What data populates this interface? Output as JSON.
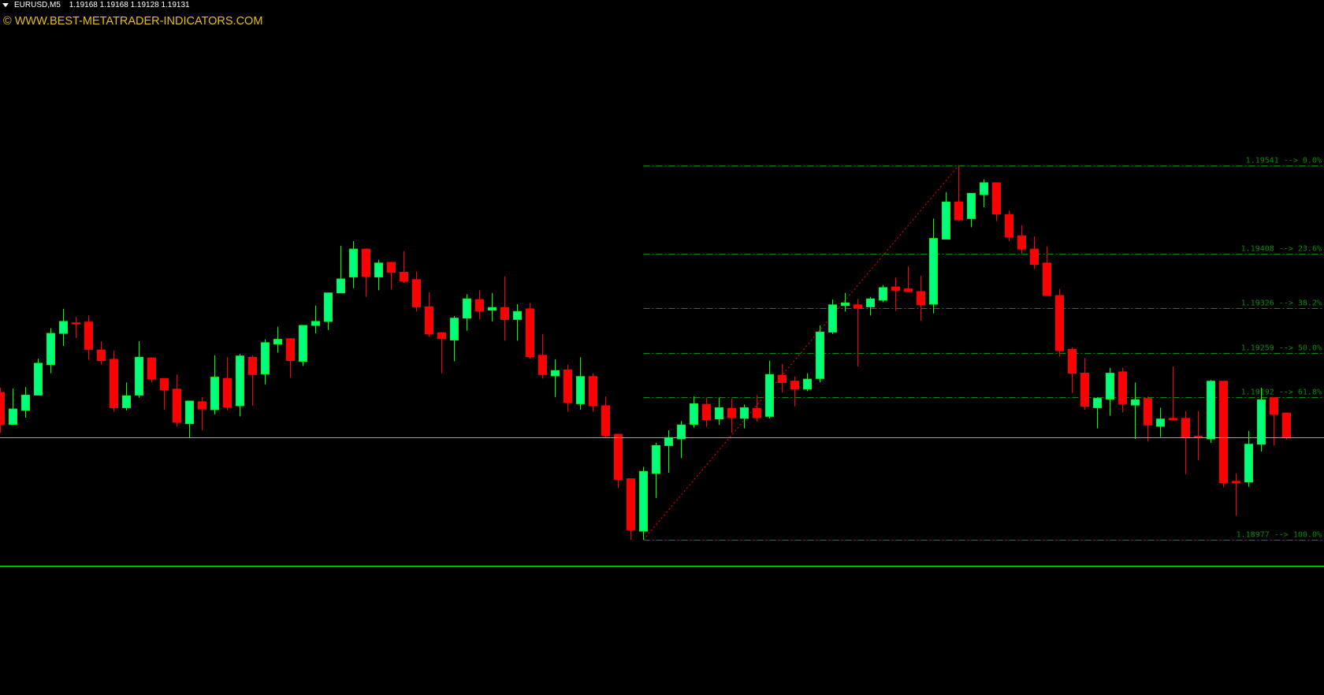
{
  "header": {
    "symbol": "EURUSD,M5",
    "ohlc": "1.19168 1.19168 1.19128 1.19131",
    "menu_icon": "triangle-down-icon"
  },
  "watermark": "© WWW.BEST-METATRADER-INDICATORS.COM",
  "colors": {
    "background": "#000000",
    "bull_body": "#00ff7f",
    "bull_wick": "#00ff00",
    "bear": "#ff0000",
    "fib": "#0a8a0a",
    "fib_trendline": "#ff0000",
    "bid_line": "#a0a0a8",
    "separator": "#00ff00"
  },
  "chart_data": {
    "type": "candlestick",
    "symbol": "EURUSD",
    "timeframe": "M5",
    "current_price": 1.19131,
    "candles": [
      [
        1.19199,
        1.19206,
        1.19138,
        1.19151
      ],
      [
        1.19151,
        1.19205,
        1.1915,
        1.19174
      ],
      [
        1.19172,
        1.19207,
        1.19161,
        1.19195
      ],
      [
        1.19195,
        1.1925,
        1.19195,
        1.19243
      ],
      [
        1.19241,
        1.19296,
        1.19228,
        1.19288
      ],
      [
        1.19288,
        1.19325,
        1.19269,
        1.19306
      ],
      [
        1.19304,
        1.19313,
        1.19281,
        1.19303
      ],
      [
        1.19305,
        1.19315,
        1.19248,
        1.19264
      ],
      [
        1.19263,
        1.19276,
        1.19241,
        1.19247
      ],
      [
        1.19249,
        1.19262,
        1.1917,
        1.19176
      ],
      [
        1.19176,
        1.19214,
        1.19172,
        1.19194
      ],
      [
        1.19195,
        1.19276,
        1.19191,
        1.19252
      ],
      [
        1.19251,
        1.19252,
        1.19214,
        1.19219
      ],
      [
        1.1922,
        1.1922,
        1.19173,
        1.19203
      ],
      [
        1.19204,
        1.19226,
        1.19148,
        1.19154
      ],
      [
        1.19152,
        1.19186,
        1.19131,
        1.19186
      ],
      [
        1.19185,
        1.19192,
        1.19142,
        1.19174
      ],
      [
        1.19173,
        1.19255,
        1.19166,
        1.19222
      ],
      [
        1.1922,
        1.19252,
        1.19172,
        1.19177
      ],
      [
        1.19179,
        1.19257,
        1.19163,
        1.19254
      ],
      [
        1.19252,
        1.19255,
        1.19179,
        1.19226
      ],
      [
        1.19227,
        1.19279,
        1.19211,
        1.19274
      ],
      [
        1.19272,
        1.19298,
        1.19259,
        1.19279
      ],
      [
        1.1928,
        1.19281,
        1.19221,
        1.19247
      ],
      [
        1.19246,
        1.193,
        1.19239,
        1.193
      ],
      [
        1.193,
        1.1933,
        1.19288,
        1.19306
      ],
      [
        1.19306,
        1.19349,
        1.19293,
        1.19349
      ],
      [
        1.19349,
        1.1942,
        1.19349,
        1.1937
      ],
      [
        1.19373,
        1.19427,
        1.19356,
        1.19415
      ],
      [
        1.19415,
        1.19416,
        1.19343,
        1.19374
      ],
      [
        1.19373,
        1.19399,
        1.19353,
        1.19394
      ],
      [
        1.19395,
        1.19395,
        1.19354,
        1.1938
      ],
      [
        1.1938,
        1.19412,
        1.19364,
        1.19367
      ],
      [
        1.19369,
        1.19381,
        1.19321,
        1.19328
      ],
      [
        1.19328,
        1.1935,
        1.19283,
        1.19287
      ],
      [
        1.19289,
        1.19289,
        1.19228,
        1.1928
      ],
      [
        1.19278,
        1.19314,
        1.19246,
        1.19311
      ],
      [
        1.19311,
        1.19347,
        1.19292,
        1.1934
      ],
      [
        1.19339,
        1.19353,
        1.19309,
        1.19322
      ],
      [
        1.19323,
        1.19349,
        1.19306,
        1.19327
      ],
      [
        1.19327,
        1.19374,
        1.19277,
        1.19309
      ],
      [
        1.19309,
        1.19332,
        1.19277,
        1.19321
      ],
      [
        1.19325,
        1.19334,
        1.1925,
        1.19253
      ],
      [
        1.19255,
        1.19287,
        1.1922,
        1.19226
      ],
      [
        1.19224,
        1.19249,
        1.19192,
        1.19232
      ],
      [
        1.19233,
        1.19241,
        1.1917,
        1.19184
      ],
      [
        1.19182,
        1.19252,
        1.19173,
        1.19223
      ],
      [
        1.19223,
        1.19228,
        1.1917,
        1.19179
      ],
      [
        1.19179,
        1.19193,
        1.19131,
        1.19134
      ],
      [
        1.19136,
        1.19136,
        1.19055,
        1.19068
      ],
      [
        1.19069,
        1.19069,
        1.18977,
        1.18992
      ],
      [
        1.1899,
        1.19087,
        1.18977,
        1.1908
      ],
      [
        1.19077,
        1.19123,
        1.1904,
        1.19119
      ],
      [
        1.19119,
        1.19142,
        1.19078,
        1.19131
      ],
      [
        1.19129,
        1.19156,
        1.191,
        1.1915
      ],
      [
        1.19151,
        1.19193,
        1.19146,
        1.19182
      ],
      [
        1.19181,
        1.19191,
        1.19147,
        1.19158
      ],
      [
        1.19159,
        1.19191,
        1.1915,
        1.19176
      ],
      [
        1.19175,
        1.1919,
        1.19138,
        1.19161
      ],
      [
        1.1916,
        1.19181,
        1.19145,
        1.19176
      ],
      [
        1.19175,
        1.19195,
        1.19155,
        1.19161
      ],
      [
        1.19163,
        1.19247,
        1.1916,
        1.19226
      ],
      [
        1.19225,
        1.19242,
        1.19199,
        1.19214
      ],
      [
        1.19216,
        1.19223,
        1.19178,
        1.19204
      ],
      [
        1.19204,
        1.19228,
        1.19201,
        1.19219
      ],
      [
        1.1922,
        1.193,
        1.19214,
        1.1929
      ],
      [
        1.1929,
        1.19339,
        1.19287,
        1.19331
      ],
      [
        1.1933,
        1.19349,
        1.19321,
        1.19334
      ],
      [
        1.19331,
        1.1934,
        1.19238,
        1.19326
      ],
      [
        1.19328,
        1.19343,
        1.19315,
        1.1934
      ],
      [
        1.19338,
        1.19361,
        1.19335,
        1.19357
      ],
      [
        1.19358,
        1.19372,
        1.19322,
        1.19353
      ],
      [
        1.19355,
        1.19389,
        1.1935,
        1.19351
      ],
      [
        1.19351,
        1.19375,
        1.19307,
        1.19331
      ],
      [
        1.19332,
        1.19461,
        1.19318,
        1.19431
      ],
      [
        1.1943,
        1.19501,
        1.1943,
        1.19486
      ],
      [
        1.19486,
        1.19541,
        1.19457,
        1.19459
      ],
      [
        1.19461,
        1.19499,
        1.19448,
        1.19499
      ],
      [
        1.19497,
        1.1952,
        1.19478,
        1.19515
      ],
      [
        1.19515,
        1.19515,
        1.19457,
        1.19468
      ],
      [
        1.19467,
        1.19473,
        1.19427,
        1.19433
      ],
      [
        1.19435,
        1.19451,
        1.19408,
        1.19415
      ],
      [
        1.19415,
        1.19434,
        1.19385,
        1.19392
      ],
      [
        1.19394,
        1.19419,
        1.19345,
        1.19345
      ],
      [
        1.19345,
        1.19355,
        1.19253,
        1.19262
      ],
      [
        1.19264,
        1.19267,
        1.19198,
        1.19228
      ],
      [
        1.19228,
        1.19251,
        1.19173,
        1.19178
      ],
      [
        1.19176,
        1.19192,
        1.19145,
        1.1919
      ],
      [
        1.19189,
        1.19236,
        1.19164,
        1.19228
      ],
      [
        1.1923,
        1.19236,
        1.19169,
        1.19182
      ],
      [
        1.1918,
        1.19214,
        1.19129,
        1.19188
      ],
      [
        1.1919,
        1.19193,
        1.19125,
        1.1915
      ],
      [
        1.19148,
        1.19176,
        1.19132,
        1.19159
      ],
      [
        1.1916,
        1.19238,
        1.19157,
        1.19158
      ],
      [
        1.1916,
        1.19171,
        1.19076,
        1.19132
      ],
      [
        1.19133,
        1.19171,
        1.19097,
        1.19131
      ],
      [
        1.19129,
        1.19218,
        1.19123,
        1.19216
      ],
      [
        1.19216,
        1.19216,
        1.19056,
        1.19063
      ],
      [
        1.19065,
        1.19077,
        1.19013,
        1.19063
      ],
      [
        1.19064,
        1.19141,
        1.19057,
        1.19121
      ],
      [
        1.19121,
        1.19206,
        1.1911,
        1.19188
      ],
      [
        1.19191,
        1.19191,
        1.19119,
        1.19166
      ],
      [
        1.19168,
        1.19168,
        1.19128,
        1.19131
      ]
    ],
    "fibonacci": {
      "from_bar": 51,
      "to_bar": 76,
      "levels": [
        {
          "price": 1.19541,
          "percent": "0.0%",
          "label": "1.19541 --> 0.0%"
        },
        {
          "price": 1.19408,
          "percent": "23.6%",
          "label": "1.19408 --> 23.6%"
        },
        {
          "price": 1.19326,
          "percent": "38.2%",
          "label": "1.19326 --> 38.2%"
        },
        {
          "price": 1.19259,
          "percent": "50.0%",
          "label": "1.19259 --> 50.0%"
        },
        {
          "price": 1.19192,
          "percent": "61.8%",
          "label": "1.19192 --> 61.8%"
        },
        {
          "price": 1.18977,
          "percent": "100.0%",
          "label": "1.18977 --> 100.0%"
        }
      ]
    }
  }
}
